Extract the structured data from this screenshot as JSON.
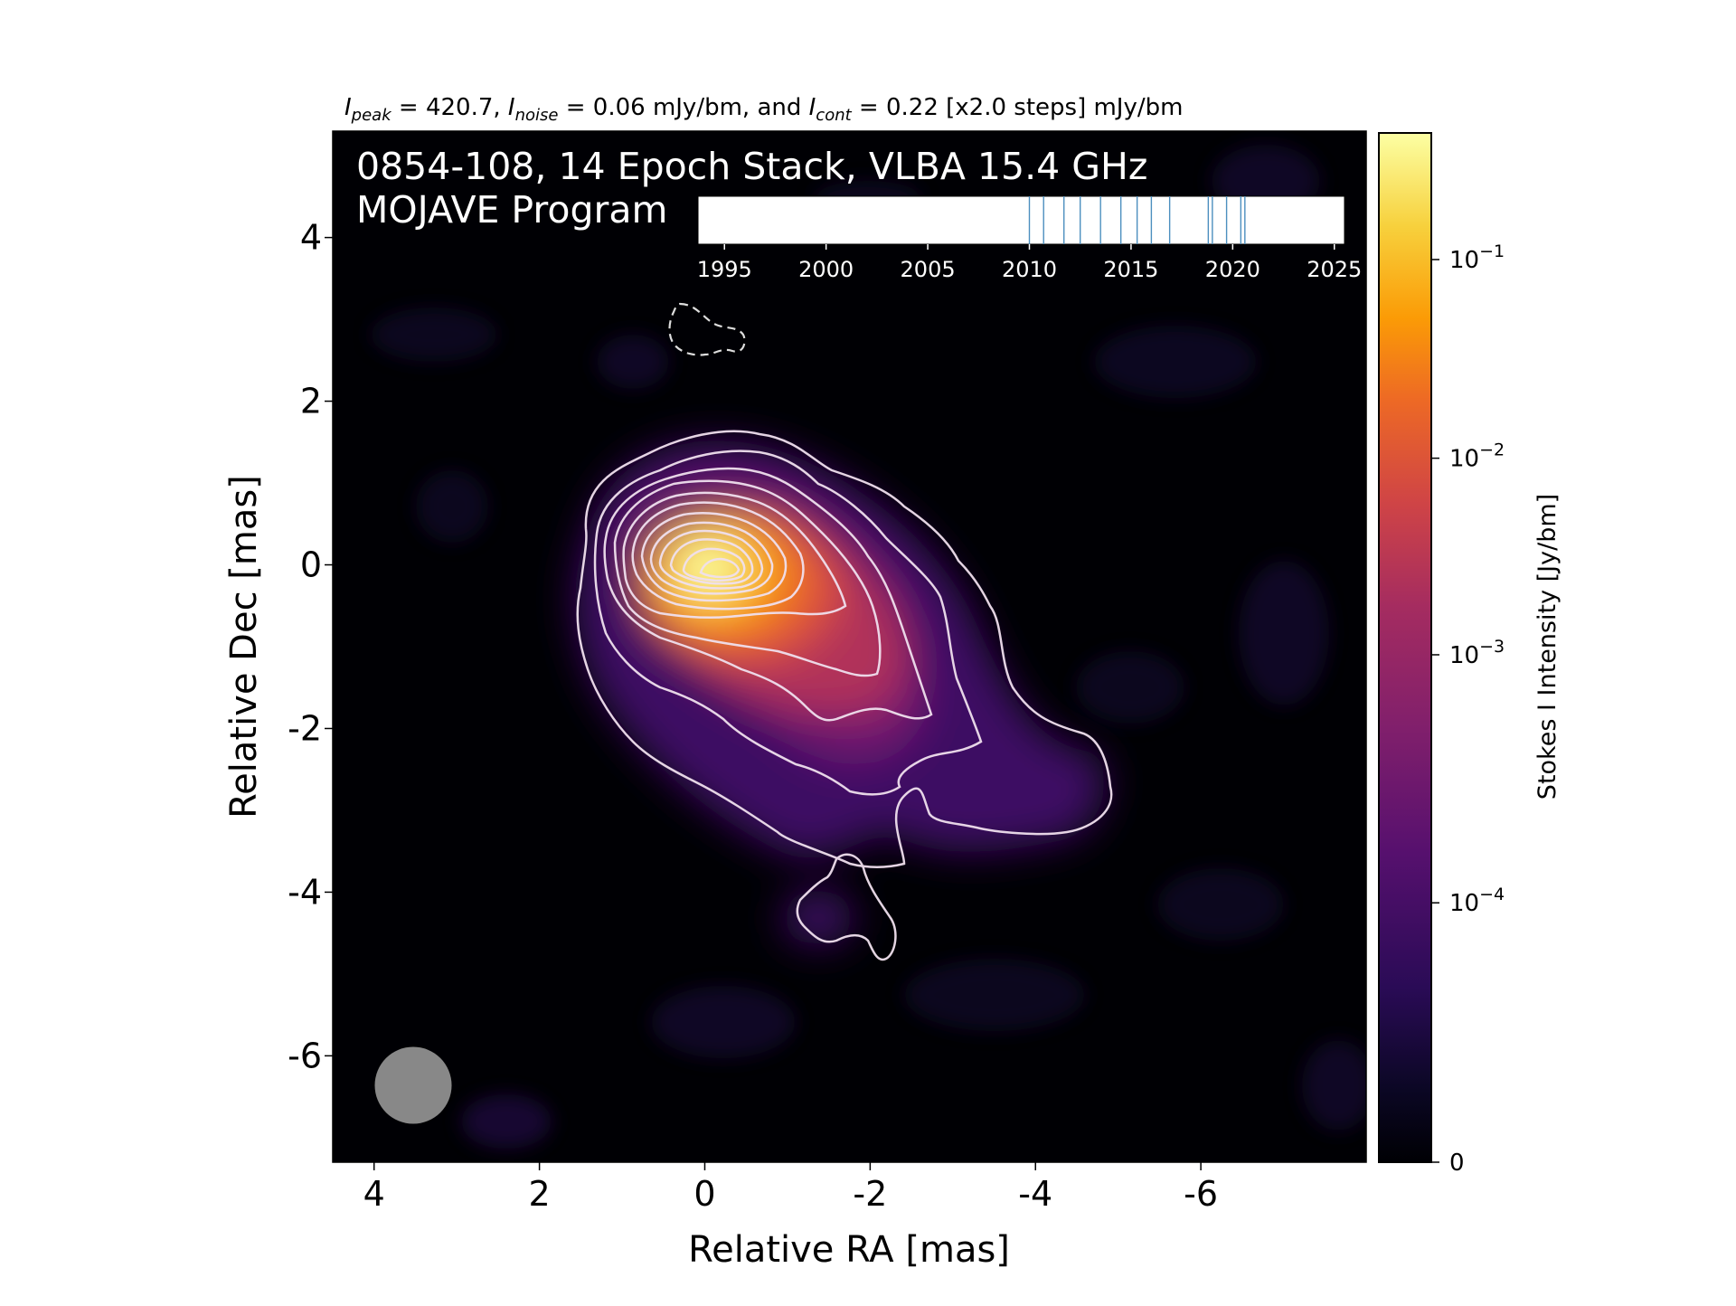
{
  "chart_data": {
    "type": "heatmap",
    "header_text": {
      "i_peak_label": "I",
      "i_peak_sub": "peak",
      "i_peak_value": " = 420.7, ",
      "i_noise_label": "I",
      "i_noise_sub": "noise",
      "i_noise_value": " = 0.06 mJy/bm, and ",
      "i_cont_label": "I",
      "i_cont_sub": "cont",
      "i_cont_value": " = 0.22 [x2.0 steps] mJy/bm"
    },
    "stats": {
      "peak_intensity_mJy_per_beam": 420.7,
      "noise_mJy_per_beam": 0.06,
      "lowest_contour_mJy_per_beam": 0.22,
      "contour_step_factor": 2.0
    },
    "overlay_title_line1": "0854-108, 14 Epoch Stack, VLBA 15.4 GHz",
    "overlay_title_line2": "MOJAVE Program",
    "xlabel": "Relative RA [mas]",
    "ylabel": "Relative Dec [mas]",
    "x_range": [
      4.5,
      -8.0
    ],
    "y_range": [
      -7.3,
      5.3
    ],
    "x_ticks": [
      4,
      2,
      0,
      -2,
      -4,
      -6
    ],
    "x_tick_labels": [
      "4",
      "2",
      "0",
      "-2",
      "-4",
      "-6"
    ],
    "y_ticks": [
      4,
      2,
      0,
      -2,
      -4,
      -6
    ],
    "y_tick_labels": [
      "4",
      "2",
      "0",
      "-2",
      "-4",
      "-6"
    ],
    "colorbar": {
      "label": "Stokes I Intensity [Jy/bm]",
      "scale": "log",
      "colormap": "inferno",
      "range": [
        0,
        0.42
      ],
      "ticks": [
        0.1,
        0.01,
        0.001,
        0.0001,
        0
      ],
      "tick_labels": [
        {
          "base": "10",
          "exp": "−1"
        },
        {
          "base": "10",
          "exp": "−2"
        },
        {
          "base": "10",
          "exp": "−3"
        },
        {
          "base": "10",
          "exp": "−4"
        },
        {
          "base": "0",
          "exp": ""
        }
      ]
    },
    "epoch_timeline": {
      "x_range": [
        1993.7,
        2025.5
      ],
      "ticks": [
        1995,
        2000,
        2005,
        2010,
        2015,
        2020,
        2025
      ],
      "tick_labels": [
        "1995",
        "2000",
        "2005",
        "2010",
        "2015",
        "2020",
        "2025"
      ],
      "epochs": [
        2010.0,
        2010.7,
        2011.7,
        2012.5,
        2013.5,
        2014.5,
        2015.3,
        2016.0,
        2016.9,
        2018.8,
        2019.0,
        2019.7,
        2020.4,
        2020.6
      ]
    },
    "beam": {
      "major_mas": 0.93,
      "minor_mas": 0.93,
      "position": "bottom-left"
    },
    "colors": {
      "background": "#000004",
      "contour_positive": "#f0e0ee",
      "contour_negative": "#dddddd",
      "epoch_line": "#4c8fbf",
      "beam": "#888888",
      "overlay_text": "#ffffff"
    }
  }
}
